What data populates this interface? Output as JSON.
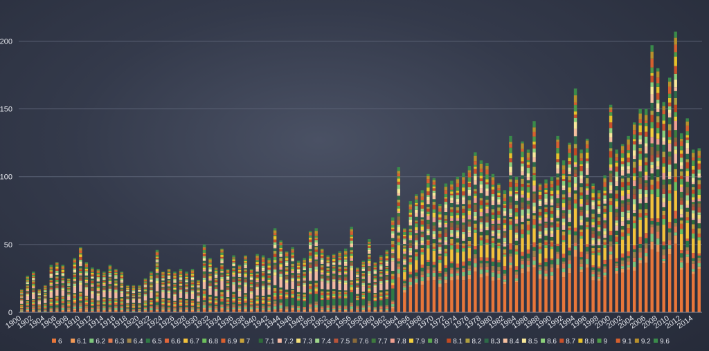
{
  "chart_data": {
    "type": "bar",
    "stacked": true,
    "title": "",
    "xlabel": "",
    "ylabel": "",
    "ylim": [
      0,
      215
    ],
    "y_ticks": [
      0,
      50,
      100,
      150,
      200
    ],
    "grid": true,
    "legend_position": "bottom",
    "categories": [
      1900,
      1901,
      1902,
      1903,
      1904,
      1905,
      1906,
      1907,
      1908,
      1909,
      1910,
      1911,
      1912,
      1913,
      1914,
      1915,
      1916,
      1917,
      1918,
      1919,
      1920,
      1921,
      1922,
      1923,
      1924,
      1925,
      1926,
      1927,
      1928,
      1929,
      1930,
      1931,
      1932,
      1933,
      1934,
      1935,
      1936,
      1937,
      1938,
      1939,
      1940,
      1941,
      1942,
      1943,
      1944,
      1945,
      1946,
      1947,
      1948,
      1949,
      1950,
      1951,
      1952,
      1953,
      1954,
      1955,
      1956,
      1957,
      1958,
      1959,
      1960,
      1961,
      1962,
      1963,
      1964,
      1965,
      1966,
      1967,
      1968,
      1969,
      1970,
      1971,
      1972,
      1973,
      1974,
      1975,
      1976,
      1977,
      1978,
      1979,
      1980,
      1981,
      1982,
      1983,
      1984,
      1985,
      1986,
      1987,
      1988,
      1989,
      1990,
      1991,
      1992,
      1993,
      1994,
      1995,
      1996,
      1997,
      1998,
      1999,
      2000,
      2001,
      2002,
      2003,
      2004,
      2005,
      2006,
      2007,
      2008,
      2009,
      2010,
      2011,
      2012,
      2013,
      2014,
      2015
    ],
    "x_tick_labels": [
      "1900",
      "1902",
      "1904",
      "1906",
      "1908",
      "1910",
      "1912",
      "1914",
      "1916",
      "1918",
      "1920",
      "1922",
      "1924",
      "1926",
      "1928",
      "1930",
      "1932",
      "1934",
      "1936",
      "1938",
      "1940",
      "1942",
      "1944",
      "1946",
      "1948",
      "1950",
      "1952",
      "1954",
      "1956",
      "1958",
      "1960",
      "1962",
      "1964",
      "1966",
      "1968",
      "1970",
      "1972",
      "1974",
      "1976",
      "1978",
      "1980",
      "1982",
      "1984",
      "1986",
      "1988",
      "1990",
      "1992",
      "1994",
      "1996",
      "1998",
      "2000",
      "2002",
      "2004",
      "2006",
      "2008",
      "2010",
      "2012",
      "2014"
    ],
    "totals": [
      17,
      27,
      30,
      17,
      20,
      35,
      37,
      35,
      25,
      40,
      48,
      37,
      33,
      32,
      30,
      35,
      32,
      30,
      20,
      20,
      20,
      25,
      30,
      46,
      30,
      32,
      30,
      32,
      30,
      32,
      24,
      50,
      40,
      33,
      47,
      32,
      42,
      35,
      42,
      32,
      43,
      42,
      40,
      62,
      53,
      45,
      48,
      38,
      40,
      60,
      62,
      47,
      42,
      43,
      45,
      47,
      63,
      33,
      38,
      54,
      37,
      42,
      46,
      70,
      107,
      62,
      82,
      87,
      90,
      102,
      99,
      80,
      95,
      97,
      100,
      103,
      108,
      118,
      112,
      110,
      102,
      95,
      90,
      130,
      100,
      126,
      120,
      141,
      95,
      98,
      100,
      130,
      112,
      125,
      165,
      120,
      128,
      95,
      90,
      101,
      153,
      120,
      124,
      130,
      140,
      150,
      150,
      197,
      180,
      155,
      173,
      207,
      132,
      143,
      120,
      121
    ],
    "series": [
      {
        "name": "6",
        "color": "#e8763a"
      },
      {
        "name": "6.1",
        "color": "#f29a56"
      },
      {
        "name": "6.2",
        "color": "#7cc57b"
      },
      {
        "name": "6.3",
        "color": "#e07b50"
      },
      {
        "name": "6.4",
        "color": "#a0854a"
      },
      {
        "name": "6.5",
        "color": "#2f7a45"
      },
      {
        "name": "6.6",
        "color": "#e2663a"
      },
      {
        "name": "6.7",
        "color": "#f3c23c"
      },
      {
        "name": "6.8",
        "color": "#6cbf5c"
      },
      {
        "name": "6.9",
        "color": "#d9602e"
      },
      {
        "name": "7",
        "color": "#c9a33a"
      },
      {
        "name": "7.1",
        "color": "#2e6b3a"
      },
      {
        "name": "7.2",
        "color": "#f3b8a2"
      },
      {
        "name": "7.3",
        "color": "#f5e07a"
      },
      {
        "name": "7.4",
        "color": "#9fd68c"
      },
      {
        "name": "7.5",
        "color": "#b8543a"
      },
      {
        "name": "7.6",
        "color": "#8a6a3a"
      },
      {
        "name": "7.7",
        "color": "#3e7a3e"
      },
      {
        "name": "7.8",
        "color": "#f0a090"
      },
      {
        "name": "7.9",
        "color": "#f4d03e"
      },
      {
        "name": "8",
        "color": "#5aa84e"
      },
      {
        "name": "8.1",
        "color": "#c24a22"
      },
      {
        "name": "8.2",
        "color": "#b0a040"
      },
      {
        "name": "8.3",
        "color": "#2d6a48"
      },
      {
        "name": "8.4",
        "color": "#f7c0a0"
      },
      {
        "name": "8.5",
        "color": "#f8e89a"
      },
      {
        "name": "8.6",
        "color": "#8bcf7a"
      },
      {
        "name": "8.7",
        "color": "#c8502a"
      },
      {
        "name": "8.8",
        "color": "#e8c22a"
      },
      {
        "name": "9",
        "color": "#4c9a48"
      },
      {
        "name": "9.1",
        "color": "#d6602e"
      },
      {
        "name": "9.2",
        "color": "#b8902c"
      },
      {
        "name": "9.6",
        "color": "#3a8a4a"
      }
    ]
  }
}
